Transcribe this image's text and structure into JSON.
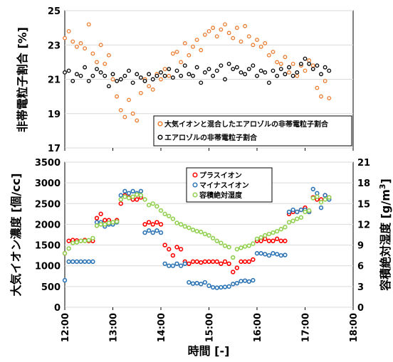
{
  "chart_data": [
    {
      "type": "scatter",
      "ylabel": "非帯電粒子割合 [%]",
      "ylim": [
        17,
        25
      ],
      "yticks": [
        17,
        19,
        21,
        23,
        25
      ],
      "xlim": [
        "12:00",
        "18:00"
      ],
      "legend_position": "bottom-right",
      "colors": {
        "mixed": "#ED7D31",
        "aerosol": "#000000"
      },
      "series": [
        {
          "key": "mixed",
          "name": "大気イオンと混合したエアロゾルの非帯電粒子割合",
          "x": [
            "12:00",
            "12:05",
            "12:10",
            "12:15",
            "12:20",
            "12:25",
            "12:30",
            "12:35",
            "12:40",
            "12:45",
            "12:50",
            "12:55",
            "13:00",
            "13:05",
            "13:10",
            "13:15",
            "13:20",
            "13:25",
            "13:30",
            "13:35",
            "13:40",
            "13:45",
            "13:50",
            "13:55",
            "14:00",
            "14:05",
            "14:10",
            "14:15",
            "14:20",
            "14:25",
            "14:30",
            "14:35",
            "14:40",
            "14:45",
            "14:50",
            "14:55",
            "15:00",
            "15:05",
            "15:10",
            "15:15",
            "15:20",
            "15:25",
            "15:30",
            "15:35",
            "15:40",
            "15:45",
            "15:50",
            "15:55",
            "16:00",
            "16:05",
            "16:10",
            "16:15",
            "16:20",
            "16:25",
            "16:30",
            "16:35",
            "16:40",
            "16:45",
            "16:50",
            "16:55",
            "17:00",
            "17:05",
            "17:10",
            "17:15",
            "17:20",
            "17:25",
            "17:30"
          ],
          "y": [
            23.4,
            23.8,
            23.2,
            22.9,
            23.1,
            22.8,
            24.2,
            22.5,
            22.0,
            23.0,
            21.9,
            22.4,
            21.0,
            20.0,
            19.2,
            18.8,
            19.8,
            19.0,
            18.6,
            20.2,
            21.0,
            20.6,
            20.4,
            21.3,
            21.0,
            21.6,
            21.2,
            22.5,
            22.6,
            22.0,
            23.1,
            22.4,
            22.9,
            23.3,
            22.7,
            23.6,
            23.8,
            24.0,
            23.5,
            23.9,
            24.2,
            23.7,
            23.4,
            24.0,
            23.2,
            24.1,
            23.5,
            23.0,
            23.3,
            22.9,
            23.1,
            22.4,
            22.6,
            22.0,
            21.9,
            22.3,
            21.4,
            21.9,
            21.2,
            21.8,
            21.5,
            22.1,
            21.8,
            20.5,
            20.0,
            20.9,
            19.9
          ]
        },
        {
          "key": "aerosol",
          "name": "エアロゾルの非帯電粒子割合",
          "x": [
            "12:00",
            "12:05",
            "12:10",
            "12:15",
            "12:20",
            "12:25",
            "12:30",
            "12:35",
            "12:40",
            "12:45",
            "12:50",
            "12:55",
            "13:00",
            "13:05",
            "13:10",
            "13:15",
            "13:20",
            "13:25",
            "13:30",
            "13:35",
            "13:40",
            "13:45",
            "13:50",
            "13:55",
            "14:00",
            "14:05",
            "14:10",
            "14:15",
            "14:20",
            "14:25",
            "14:30",
            "14:35",
            "14:40",
            "14:45",
            "14:50",
            "14:55",
            "15:00",
            "15:05",
            "15:10",
            "15:15",
            "15:20",
            "15:25",
            "15:30",
            "15:35",
            "15:40",
            "15:45",
            "15:50",
            "15:55",
            "16:00",
            "16:05",
            "16:10",
            "16:15",
            "16:20",
            "16:25",
            "16:30",
            "16:35",
            "16:40",
            "16:45",
            "16:50",
            "16:55",
            "17:00",
            "17:05",
            "17:10",
            "17:15",
            "17:20",
            "17:25",
            "17:30"
          ],
          "y": [
            21.4,
            21.5,
            20.9,
            21.3,
            21.2,
            21.7,
            20.9,
            21.2,
            21.6,
            21.4,
            21.2,
            20.6,
            21.3,
            20.9,
            21.0,
            21.2,
            21.5,
            20.8,
            21.3,
            21.1,
            20.9,
            21.3,
            21.0,
            21.2,
            21.4,
            21.2,
            21.6,
            21.1,
            21.5,
            21.2,
            21.8,
            21.3,
            21.2,
            21.7,
            20.8,
            21.4,
            21.6,
            21.2,
            21.5,
            21.8,
            21.0,
            21.9,
            21.6,
            21.7,
            21.4,
            21.3,
            21.6,
            21.8,
            21.2,
            21.5,
            21.4,
            20.8,
            21.5,
            21.2,
            21.6,
            21.3,
            21.7,
            21.2,
            21.4,
            21.9,
            22.2,
            21.9,
            21.6,
            21.8,
            21.3,
            21.7,
            21.5
          ]
        }
      ]
    },
    {
      "type": "scatter",
      "ylabel": "大気イオン濃度 [個/cc]",
      "y2label": "容積絶対湿度 [g/m",
      "y2label_sup": "3",
      "y2label_end": "]",
      "xlabel": "時間 [-]",
      "xticks": [
        "12:00",
        "13:00",
        "14:00",
        "15:00",
        "16:00",
        "17:00",
        "18:00"
      ],
      "xlim": [
        "12:00",
        "18:00"
      ],
      "ylim": [
        0,
        3500
      ],
      "yticks": [
        0,
        500,
        1000,
        1500,
        2000,
        2500,
        3000,
        3500
      ],
      "y2lim": [
        0,
        21
      ],
      "y2ticks": [
        0,
        3,
        6,
        9,
        12,
        15,
        18,
        21
      ],
      "legend_position": "top-center",
      "colors": {
        "plus": "#FF0000",
        "minus": "#2E75B6",
        "humidity": "#92D050"
      },
      "series": [
        {
          "key": "plus",
          "name": "プラスイオン",
          "axis": "left",
          "x": [
            "12:00",
            "12:05",
            "12:10",
            "12:15",
            "12:20",
            "12:25",
            "12:30",
            "12:35",
            "12:40",
            "12:45",
            "12:50",
            "12:55",
            "13:00",
            "13:05",
            "13:10",
            "13:15",
            "13:20",
            "13:25",
            "13:30",
            "13:35",
            "13:40",
            "13:45",
            "13:50",
            "13:55",
            "14:00",
            "14:05",
            "14:10",
            "14:15",
            "14:20",
            "14:25",
            "14:30",
            "14:35",
            "14:40",
            "14:45",
            "14:50",
            "14:55",
            "15:00",
            "15:05",
            "15:10",
            "15:15",
            "15:20",
            "15:25",
            "15:30",
            "15:35",
            "15:40",
            "15:45",
            "15:50",
            "15:55",
            "16:00",
            "16:05",
            "16:10",
            "16:15",
            "16:20",
            "16:25",
            "16:30",
            "16:35",
            "16:40",
            "16:45",
            "16:50",
            "16:55",
            "17:00",
            "17:05",
            "17:10",
            "17:15",
            "17:20",
            "17:25",
            "17:30"
          ],
          "y": [
            1300,
            1600,
            1620,
            1610,
            1600,
            1620,
            1600,
            1600,
            2150,
            2250,
            2100,
            2100,
            2050,
            2100,
            2500,
            2700,
            2650,
            2600,
            2600,
            2650,
            2000,
            2050,
            2000,
            2050,
            2000,
            1500,
            1400,
            1250,
            1450,
            1400,
            1100,
            1050,
            1100,
            1100,
            1080,
            1100,
            1100,
            1100,
            1100,
            1050,
            1100,
            1050,
            850,
            950,
            1100,
            1100,
            1100,
            1150,
            1600,
            1600,
            1650,
            1600,
            1600,
            1650,
            1600,
            1600,
            2250,
            2300,
            2300,
            2350,
            2400,
            2300,
            2650,
            2600,
            2600,
            2700,
            2650
          ]
        },
        {
          "key": "minus",
          "name": "マイナスイオン",
          "axis": "left",
          "x": [
            "12:00",
            "12:05",
            "12:10",
            "12:15",
            "12:20",
            "12:25",
            "12:30",
            "12:35",
            "12:40",
            "12:45",
            "12:50",
            "12:55",
            "13:00",
            "13:05",
            "13:10",
            "13:15",
            "13:20",
            "13:25",
            "13:30",
            "13:35",
            "13:40",
            "13:45",
            "13:50",
            "13:55",
            "14:00",
            "14:05",
            "14:10",
            "14:15",
            "14:20",
            "14:25",
            "14:30",
            "14:35",
            "14:40",
            "14:45",
            "14:50",
            "14:55",
            "15:00",
            "15:05",
            "15:10",
            "15:15",
            "15:20",
            "15:25",
            "15:30",
            "15:35",
            "15:40",
            "15:45",
            "15:50",
            "15:55",
            "16:00",
            "16:05",
            "16:10",
            "16:15",
            "16:20",
            "16:25",
            "16:30",
            "16:35",
            "16:40",
            "16:45",
            "16:50",
            "16:55",
            "17:00",
            "17:05",
            "17:10",
            "17:15",
            "17:20",
            "17:25",
            "17:30"
          ],
          "y": [
            650,
            1100,
            1100,
            1100,
            1100,
            1100,
            1100,
            1100,
            2050,
            2050,
            1950,
            2000,
            2000,
            2050,
            2700,
            2800,
            2750,
            2800,
            2750,
            2800,
            1800,
            1850,
            1800,
            1850,
            1800,
            1050,
            1000,
            1000,
            1050,
            1000,
            1050,
            600,
            570,
            580,
            560,
            600,
            520,
            480,
            470,
            480,
            490,
            500,
            560,
            580,
            630,
            640,
            620,
            650,
            1300,
            1300,
            1280,
            1250,
            1300,
            1280,
            1250,
            1260,
            2300,
            2350,
            2300,
            2350,
            2350,
            2300,
            2850,
            2750,
            2400,
            2700,
            2600
          ]
        },
        {
          "key": "humidity",
          "name": "容積絶対湿度",
          "axis": "right",
          "x": [
            "12:00",
            "12:05",
            "12:10",
            "12:15",
            "12:20",
            "12:25",
            "12:30",
            "12:35",
            "12:40",
            "12:45",
            "12:50",
            "12:55",
            "13:00",
            "13:05",
            "13:10",
            "13:15",
            "13:20",
            "13:25",
            "13:30",
            "13:35",
            "13:40",
            "13:45",
            "13:50",
            "13:55",
            "14:00",
            "14:05",
            "14:10",
            "14:15",
            "14:20",
            "14:25",
            "14:30",
            "14:35",
            "14:40",
            "14:45",
            "14:50",
            "14:55",
            "15:00",
            "15:05",
            "15:10",
            "15:15",
            "15:20",
            "15:25",
            "15:30",
            "15:35",
            "15:40",
            "15:45",
            "15:50",
            "15:55",
            "16:00",
            "16:05",
            "16:10",
            "16:15",
            "16:20",
            "16:25",
            "16:30",
            "16:35",
            "16:40",
            "16:45",
            "16:50",
            "16:55",
            "17:00",
            "17:05",
            "17:10",
            "17:15",
            "17:20",
            "17:25",
            "17:30"
          ],
          "y": [
            7.8,
            8.5,
            9.3,
            9.4,
            9.6,
            9.6,
            9.7,
            10.0,
            11.8,
            12.0,
            12.0,
            12.2,
            12.3,
            12.4,
            15.6,
            16.0,
            15.8,
            16.0,
            16.3,
            16.2,
            15.6,
            14.8,
            15.0,
            14.6,
            14.0,
            13.5,
            13.2,
            12.8,
            12.2,
            12.0,
            11.7,
            11.5,
            11.2,
            11.0,
            10.9,
            10.6,
            10.4,
            10.0,
            9.6,
            9.3,
            8.9,
            8.7,
            7.2,
            8.4,
            8.6,
            8.8,
            8.9,
            9.2,
            9.9,
            10.1,
            10.4,
            10.6,
            10.8,
            11.0,
            11.3,
            11.6,
            12.3,
            12.5,
            12.8,
            13.0,
            13.8,
            14.0,
            15.8,
            16.0,
            15.2,
            15.6,
            15.9
          ]
        }
      ]
    }
  ]
}
